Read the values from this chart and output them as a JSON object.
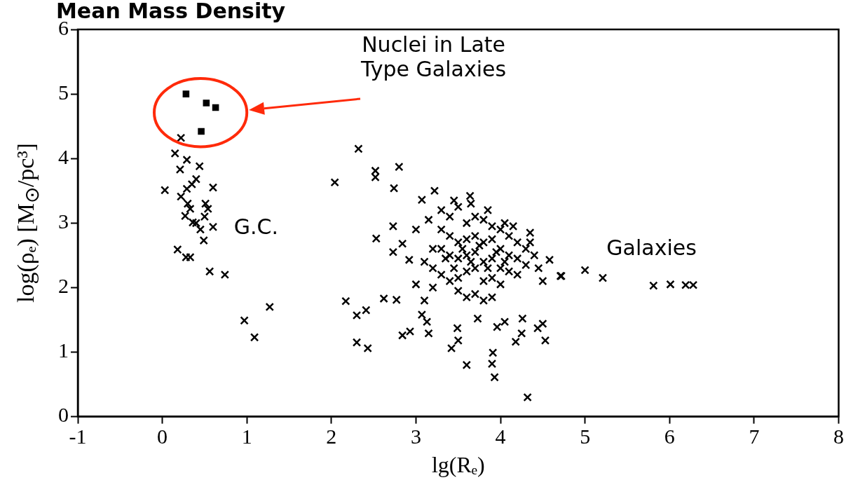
{
  "chart_data": {
    "type": "scatter",
    "title": "Mean Mass Density",
    "xlabel": "lg(Rₑ)",
    "ylabel": "log(ρₑ) [M$_{⊙}$/pc³]",
    "xlim": [
      -1,
      8
    ],
    "ylim": [
      0,
      6
    ],
    "xticks": [
      -1,
      0,
      1,
      2,
      3,
      4,
      5,
      6,
      7,
      8
    ],
    "yticks": [
      0,
      1,
      2,
      3,
      4,
      5,
      6
    ],
    "grid": false,
    "legend": false,
    "series": [
      {
        "name": "Nuclei in Late Type Galaxies",
        "color": "#000000",
        "marker": "square",
        "x": [
          0.28,
          0.52,
          0.63,
          0.46
        ],
        "values": [
          5.0,
          4.86,
          4.79,
          4.42
        ]
      },
      {
        "name": "G.C.",
        "color": "#000000",
        "marker": "cross",
        "x": [
          0.22,
          0.15,
          0.29,
          0.21,
          0.44,
          0.4,
          0.03,
          0.29,
          0.6,
          0.22,
          0.51,
          0.33,
          0.27,
          0.54,
          0.36,
          0.45,
          0.6,
          0.49,
          0.18,
          0.33,
          0.56,
          0.74,
          1.27,
          0.97,
          1.09,
          0.3,
          0.4,
          0.5,
          0.28,
          0.35
        ],
        "values": [
          4.32,
          4.08,
          3.98,
          3.83,
          3.88,
          3.68,
          3.51,
          3.53,
          3.55,
          3.41,
          3.3,
          3.22,
          3.11,
          3.22,
          3.01,
          2.9,
          2.94,
          2.73,
          2.59,
          2.47,
          2.25,
          2.2,
          1.7,
          1.49,
          1.23,
          3.3,
          3.0,
          3.1,
          2.47,
          3.6
        ]
      },
      {
        "name": "Galaxies",
        "color": "#000000",
        "marker": "cross",
        "x": [
          2.32,
          2.8,
          2.52,
          2.52,
          2.04,
          2.74,
          3.22,
          3.64,
          3.07,
          2.73,
          2.53,
          2.73,
          2.84,
          2.92,
          2.17,
          2.3,
          2.41,
          2.62,
          2.77,
          3.07,
          3.13,
          2.84,
          2.93,
          3.15,
          2.3,
          2.43,
          3.42,
          3.5,
          3.49,
          3.91,
          3.6,
          3.9,
          3.93,
          4.32,
          4.18,
          4.25,
          4.53,
          4.44,
          4.5,
          3.96,
          4.05,
          4.26,
          3.73,
          4.71,
          4.58,
          4.35,
          5.0,
          5.21,
          4.72,
          5.81,
          6.01,
          6.19,
          6.28,
          3.3,
          3.4,
          3.5,
          3.6,
          3.7,
          3.8,
          3.9,
          4.0,
          4.1,
          4.2,
          4.3,
          4.4,
          3.3,
          3.4,
          3.5,
          3.6,
          3.7,
          3.8,
          3.9,
          4.0,
          4.1,
          4.2,
          4.3,
          3.3,
          3.4,
          3.5,
          3.6,
          3.7,
          3.8,
          3.9,
          4.0,
          4.1,
          4.2,
          3.2,
          3.3,
          3.4,
          3.5,
          3.6,
          3.7,
          3.8,
          3.9,
          4.0,
          3.5,
          3.6,
          3.7,
          3.8,
          3.9,
          3.2,
          3.1,
          3.0,
          3.1,
          3.2,
          3.0,
          3.15,
          3.45,
          3.65,
          3.85,
          4.05,
          4.15,
          4.35,
          4.45,
          4.5,
          3.55,
          3.75,
          3.95,
          4.05,
          3.65,
          3.85,
          3.45,
          3.35
        ],
        "values": [
          4.15,
          3.87,
          3.81,
          3.71,
          3.63,
          3.54,
          3.5,
          3.42,
          3.36,
          2.95,
          2.76,
          2.55,
          2.68,
          2.43,
          1.79,
          1.57,
          1.65,
          1.83,
          1.81,
          1.58,
          1.47,
          1.26,
          1.32,
          1.29,
          1.15,
          1.06,
          1.06,
          1.18,
          1.37,
          0.99,
          0.8,
          0.82,
          0.61,
          0.3,
          1.16,
          1.29,
          1.18,
          1.37,
          1.44,
          1.39,
          1.47,
          1.52,
          1.52,
          2.18,
          2.43,
          2.7,
          2.27,
          2.15,
          2.18,
          2.03,
          2.05,
          2.04,
          2.04,
          3.2,
          3.1,
          3.25,
          3.0,
          3.1,
          3.05,
          2.95,
          2.9,
          2.8,
          2.7,
          2.6,
          2.5,
          2.9,
          2.8,
          2.7,
          2.75,
          2.8,
          2.7,
          2.75,
          2.6,
          2.5,
          2.45,
          2.35,
          2.6,
          2.5,
          2.45,
          2.5,
          2.55,
          2.4,
          2.45,
          2.3,
          2.25,
          2.2,
          2.3,
          2.2,
          2.1,
          2.15,
          2.25,
          2.3,
          2.1,
          2.15,
          2.05,
          1.95,
          1.85,
          1.9,
          1.8,
          1.85,
          2.0,
          1.8,
          2.05,
          2.4,
          2.6,
          2.9,
          3.05,
          3.35,
          3.3,
          3.2,
          3.0,
          2.95,
          2.85,
          2.3,
          2.1,
          2.6,
          2.65,
          2.55,
          2.4,
          2.4,
          2.3,
          2.3,
          2.45
        ]
      }
    ]
  }
}
